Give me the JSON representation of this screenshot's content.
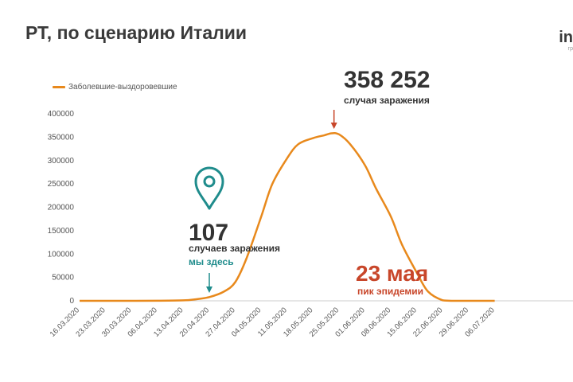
{
  "title": "РТ, по сценарию Италии",
  "brand": {
    "name": "in",
    "sub": "гр"
  },
  "colors": {
    "line": "#e8891c",
    "teal": "#1f8c8c",
    "red": "#c8462a",
    "axis": "#cccccc",
    "grid": "#eeeeee"
  },
  "icons": {
    "marker": "map-pin-icon"
  },
  "annotations": {
    "peak_value": "358 252",
    "peak_caption": "случая заражения",
    "current_value": "107",
    "current_caption": "случаев заражения",
    "current_here": "мы здесь",
    "peak_date": "23 мая",
    "peak_date_caption": "пик эпидемии"
  },
  "chart_data": {
    "type": "line",
    "legend_position": "top-left",
    "grid": false,
    "ylim": [
      0,
      400000
    ],
    "yticks": [
      "0",
      "50000",
      "100000",
      "150000",
      "200000",
      "250000",
      "300000",
      "350000",
      "400000"
    ],
    "xticks": [
      "16.03.2020",
      "23.03.2020",
      "30.03.2020",
      "06.04.2020",
      "13.04.2020",
      "20.04.2020",
      "27.04.2020",
      "04.05.2020",
      "11.05.2020",
      "18.05.2020",
      "25.05.2020",
      "01.06.2020",
      "08.06.2020",
      "15.06.2020",
      "22.06.2020",
      "29.06.2020",
      "06.07.2020"
    ],
    "series": [
      {
        "name": "Заболевшие-выздоровевшие",
        "x": [
          "16.03.2020",
          "23.03.2020",
          "30.03.2020",
          "06.04.2020",
          "13.04.2020",
          "16.04.2020",
          "20.04.2020",
          "24.04.2020",
          "27.04.2020",
          "30.04.2020",
          "04.05.2020",
          "07.05.2020",
          "11.05.2020",
          "14.05.2020",
          "18.05.2020",
          "21.05.2020",
          "23.05.2020",
          "25.05.2020",
          "28.05.2020",
          "01.06.2020",
          "04.06.2020",
          "08.06.2020",
          "11.06.2020",
          "15.06.2020",
          "18.06.2020",
          "22.06.2020",
          "25.06.2020",
          "29.06.2020",
          "06.07.2020"
        ],
        "y": [
          0,
          0,
          0,
          200,
          1000,
          3000,
          8000,
          20000,
          40000,
          90000,
          180000,
          250000,
          305000,
          335000,
          348000,
          354000,
          358252,
          356000,
          335000,
          290000,
          240000,
          180000,
          120000,
          60000,
          20000,
          1000,
          0,
          0,
          0
        ]
      }
    ]
  }
}
